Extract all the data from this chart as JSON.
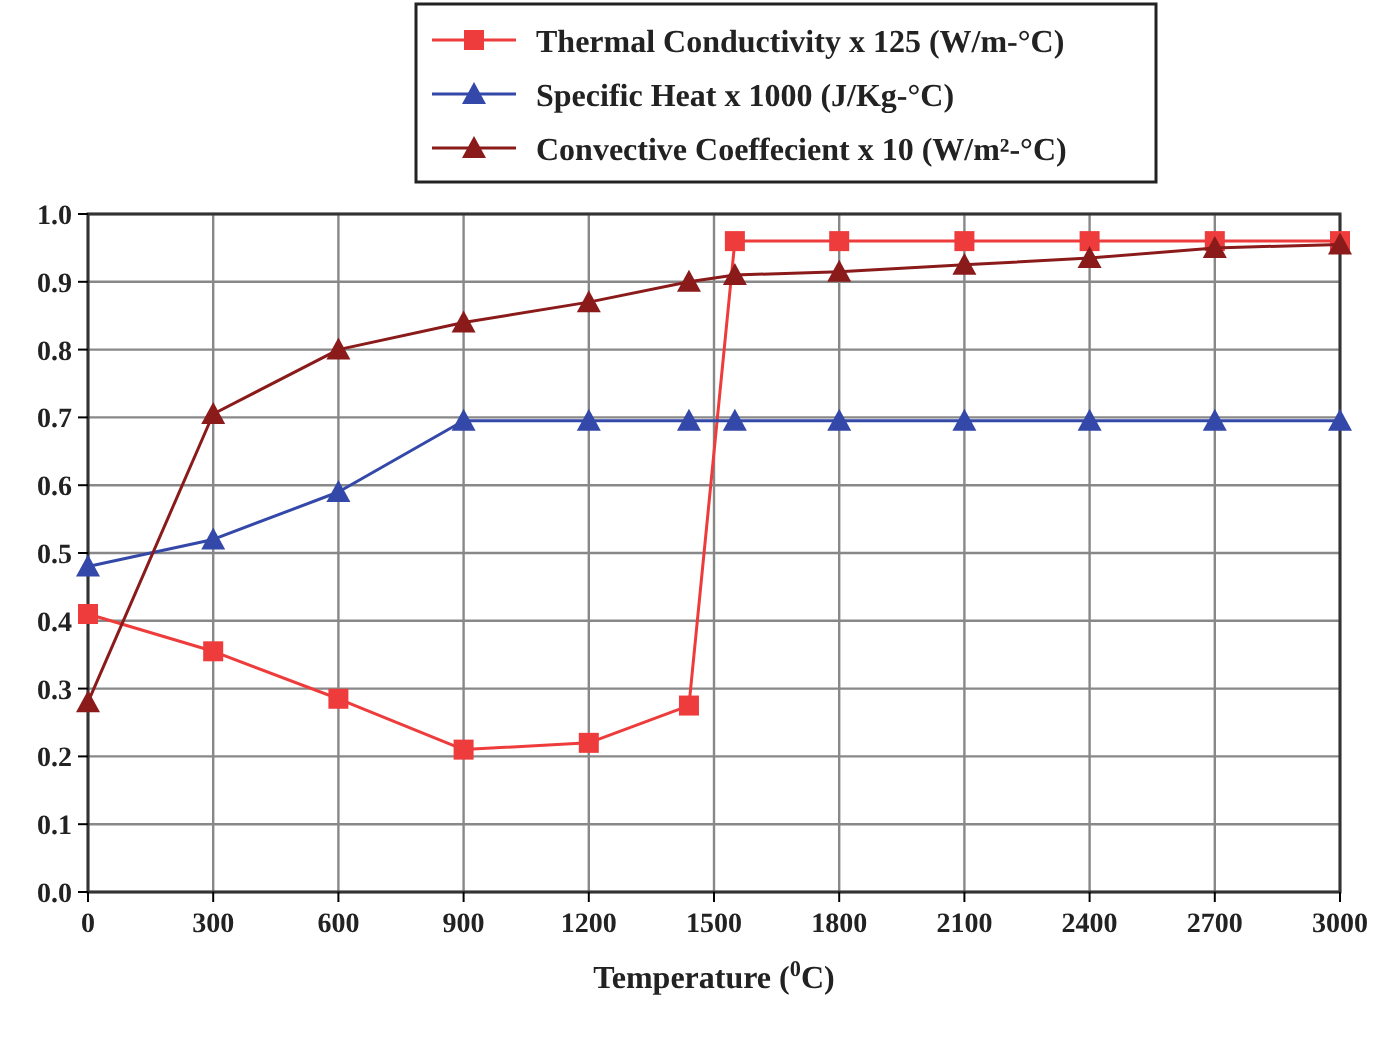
{
  "chart_data": {
    "type": "line",
    "xlabel": "Temperature ($^{0}$C)",
    "xlim": [
      0,
      3000
    ],
    "xticks": [
      0,
      300,
      600,
      900,
      1200,
      1500,
      1800,
      2100,
      2400,
      2700,
      3000
    ],
    "ylim": [
      0,
      1
    ],
    "yticks": [
      {
        "value": 0,
        "label": "0.0"
      },
      0.1,
      0.2,
      0.3,
      0.4,
      0.5,
      0.6,
      0.7,
      0.8,
      0.9,
      {
        "value": 1,
        "label": "1.0"
      }
    ],
    "grid": true,
    "legend": "top",
    "line_style": "solid",
    "series": [
      {
        "name": "Thermal Conductivity x 125 (W/m-°C)",
        "color": "#ee3b3b",
        "marker": "square",
        "x": [
          0,
          300,
          600,
          900,
          1200,
          1440,
          1550,
          1800,
          2100,
          2400,
          2700,
          3000
        ],
        "values": [
          0.41,
          0.355,
          0.285,
          0.21,
          0.22,
          0.275,
          0.96,
          0.96,
          0.96,
          0.96,
          0.96,
          0.96
        ]
      },
      {
        "name": "Specific Heat x 1000 (J/Kg-°C)",
        "color": "#3348a8",
        "marker": "triangle",
        "x": [
          0,
          300,
          600,
          900,
          1200,
          1440,
          1550,
          1800,
          2100,
          2400,
          2700,
          3000
        ],
        "values": [
          0.48,
          0.52,
          0.59,
          0.695,
          0.695,
          0.695,
          0.695,
          0.695,
          0.695,
          0.695,
          0.695,
          0.695
        ]
      },
      {
        "name": "Convective Coeffecient x 10 (W/m²-°C)",
        "color": "#8b1a1a",
        "marker": "triangle",
        "x": [
          0,
          300,
          600,
          900,
          1200,
          1440,
          1550,
          1800,
          2100,
          2400,
          2700,
          3000
        ],
        "values": [
          0.28,
          0.705,
          0.8,
          0.84,
          0.87,
          0.9,
          0.91,
          0.915,
          0.925,
          0.935,
          0.95,
          0.955
        ]
      }
    ]
  }
}
